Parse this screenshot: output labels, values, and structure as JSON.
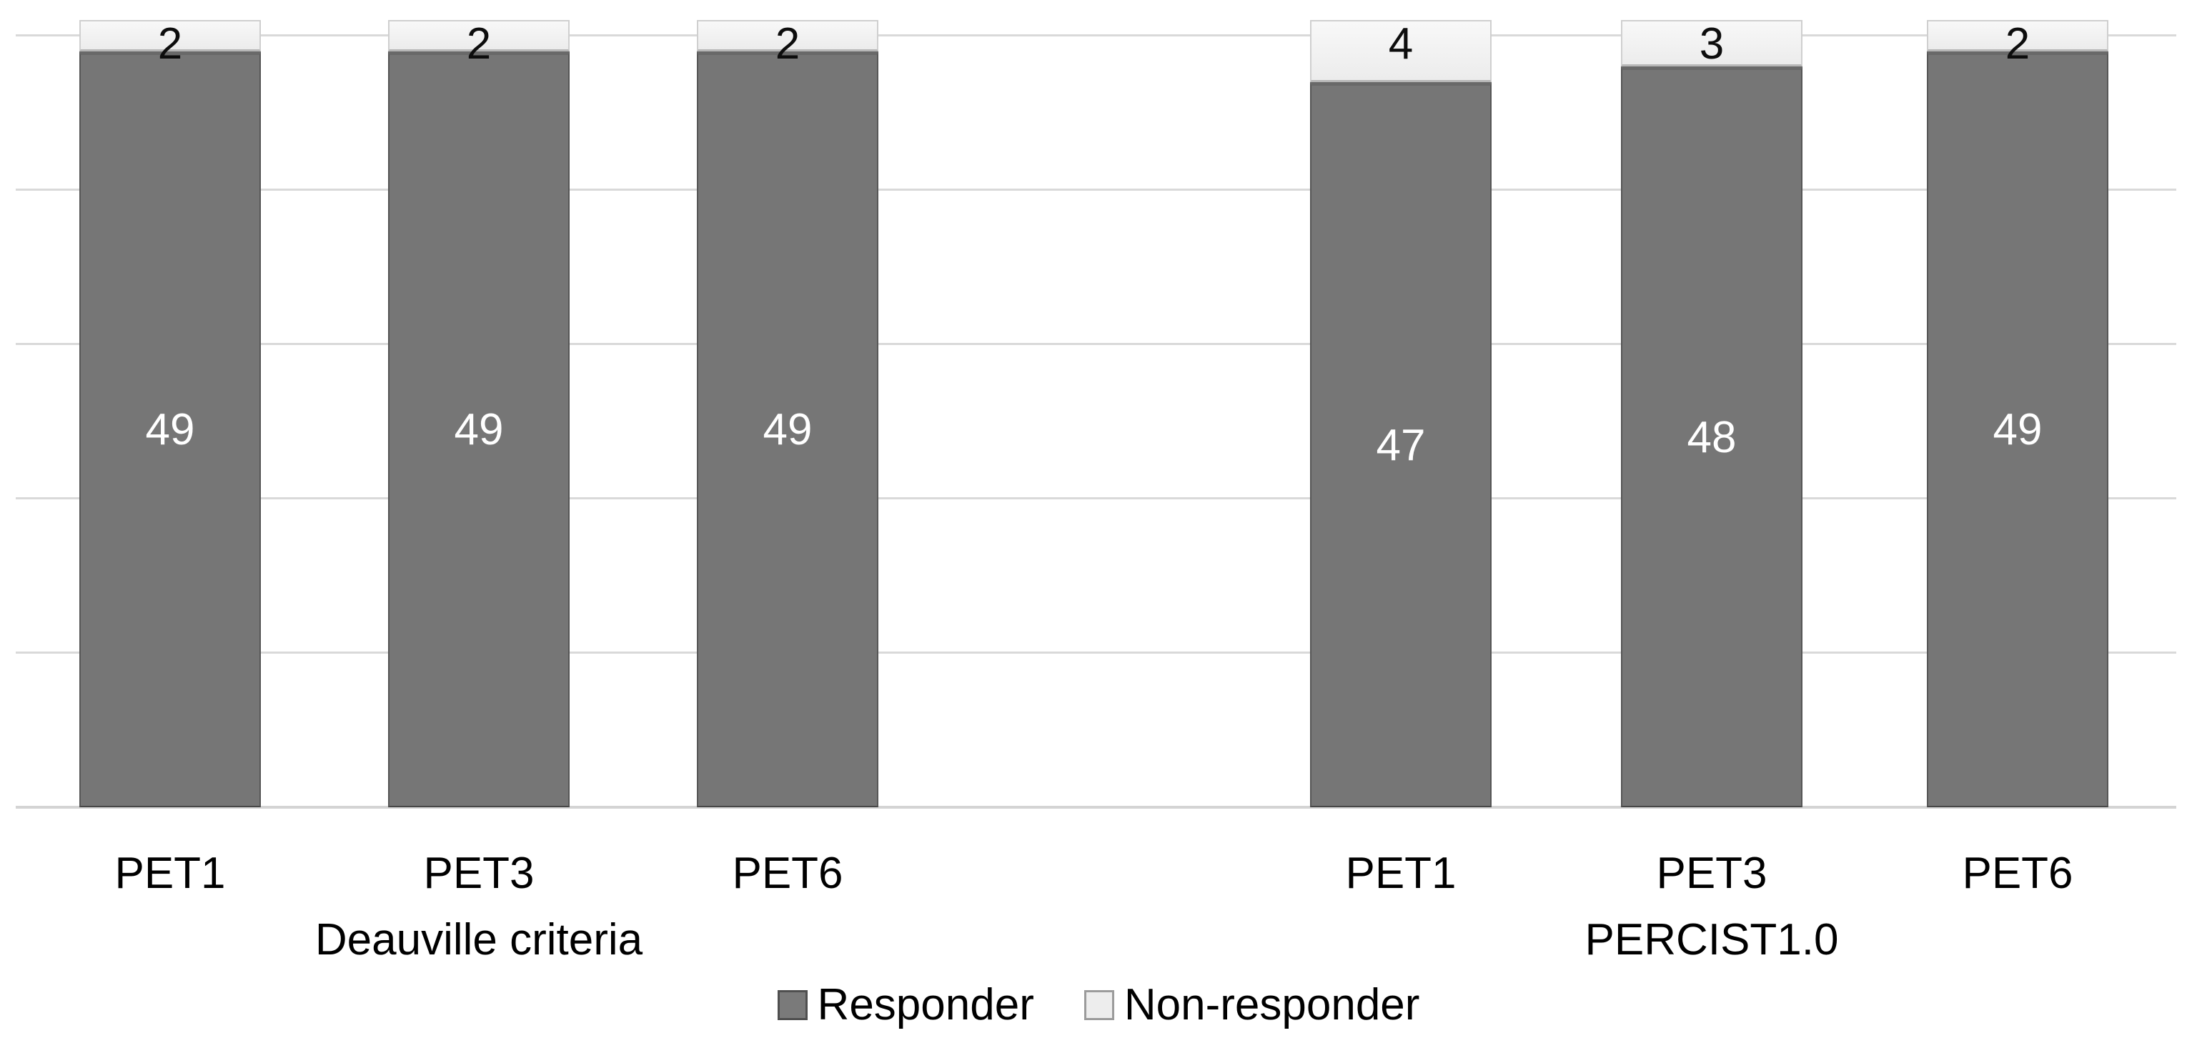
{
  "chart_data": {
    "type": "bar",
    "stacked": true,
    "title": "",
    "xlabel": "",
    "ylabel": "",
    "ylim": [
      0,
      51
    ],
    "gridline_step": 10,
    "gridline_max": 50,
    "grid": true,
    "legend_position": "bottom",
    "legend_labels": {
      "responder": "Responder",
      "non_responder": "Non-responder"
    },
    "colors": {
      "responder": "#767676",
      "non_responder": "#efefef"
    },
    "groups": [
      {
        "label": "Deauville criteria",
        "bars": [
          {
            "category": "PET1",
            "responder": 49,
            "non_responder": 2
          },
          {
            "category": "PET3",
            "responder": 49,
            "non_responder": 2
          },
          {
            "category": "PET6",
            "responder": 49,
            "non_responder": 2
          }
        ]
      },
      {
        "label": "PERCIST1.0",
        "bars": [
          {
            "category": "PET1",
            "responder": 47,
            "non_responder": 4
          },
          {
            "category": "PET3",
            "responder": 48,
            "non_responder": 3
          },
          {
            "category": "PET6",
            "responder": 49,
            "non_responder": 2
          }
        ]
      }
    ]
  }
}
